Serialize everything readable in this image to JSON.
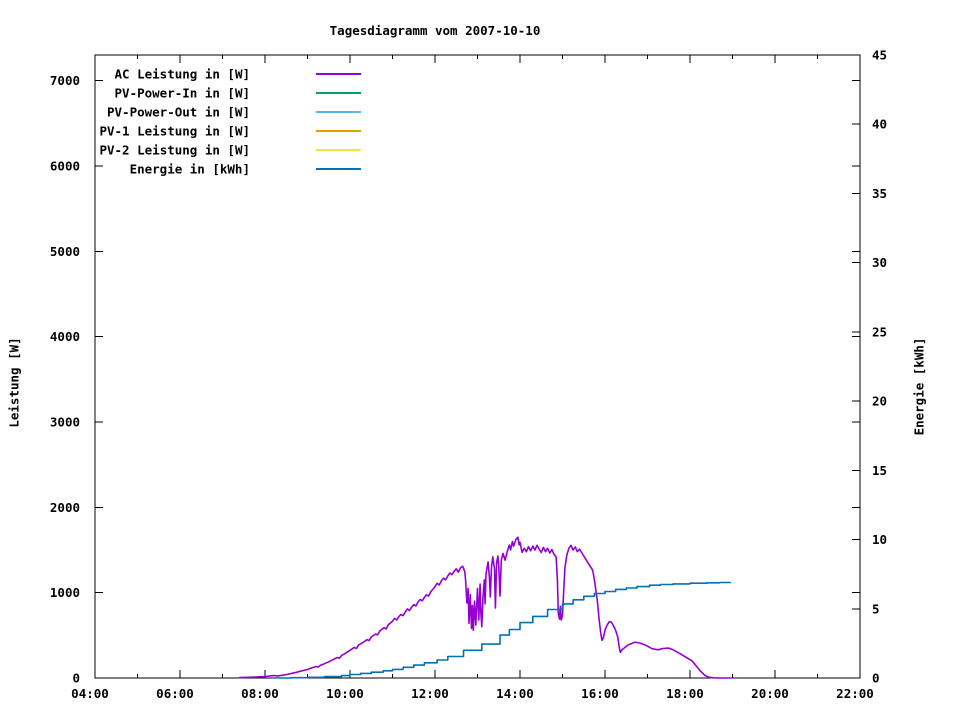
{
  "title": "Tagesdiagramm vom 2007-10-10",
  "axes": {
    "left": {
      "label": "Leistung [W]",
      "ticks": [
        0,
        1000,
        2000,
        3000,
        4000,
        5000,
        6000,
        7000
      ]
    },
    "right": {
      "label": "Energie [kWh]",
      "ticks": [
        0,
        5,
        10,
        15,
        20,
        25,
        30,
        35,
        40,
        45
      ]
    },
    "x": {
      "major": [
        {
          "t": 4,
          "label": "04:00"
        },
        {
          "t": 6,
          "label": "06:00"
        },
        {
          "t": 8,
          "label": "08:00"
        },
        {
          "t": 10,
          "label": "10:00"
        },
        {
          "t": 12,
          "label": "12:00"
        },
        {
          "t": 14,
          "label": "14:00"
        },
        {
          "t": 16,
          "label": "16:00"
        },
        {
          "t": 18,
          "label": "18:00"
        },
        {
          "t": 20,
          "label": "20:00"
        },
        {
          "t": 22,
          "label": "22:00"
        }
      ],
      "minor_hours": [
        5,
        7,
        9,
        11,
        13,
        15,
        17,
        19,
        21
      ]
    }
  },
  "legend": [
    {
      "label": "AC Leistung in [W]",
      "color": "#9400d3"
    },
    {
      "label": "PV-Power-In in [W]",
      "color": "#009e73"
    },
    {
      "label": "PV-Power-Out in [W]",
      "color": "#56b4e9"
    },
    {
      "label": "PV-1 Leistung in [W]",
      "color": "#e69f00"
    },
    {
      "label": "PV-2 Leistung in [W]",
      "color": "#f0e442"
    },
    {
      "label": "Energie in [kWh]",
      "color": "#0072b2"
    }
  ],
  "chart_data": {
    "type": "line",
    "title": "Tagesdiagramm vom 2007-10-10",
    "x_range_hours": [
      4,
      22
    ],
    "y_left_label": "Leistung [W]",
    "y_left_range": [
      0,
      7300
    ],
    "y_right_label": "Energie [kWh]",
    "y_right_range": [
      0,
      45
    ],
    "grid": false,
    "legend_position": "top-left-inside",
    "series": [
      {
        "name": "AC Leistung in [W]",
        "color": "#9400d3",
        "axis": "left",
        "style": "lines",
        "points": [
          [
            7.4,
            5
          ],
          [
            7.6,
            8
          ],
          [
            7.8,
            12
          ],
          [
            8.0,
            18
          ],
          [
            8.1,
            22
          ],
          [
            8.2,
            28
          ],
          [
            8.3,
            25
          ],
          [
            8.4,
            32
          ],
          [
            8.5,
            40
          ],
          [
            8.6,
            50
          ],
          [
            8.7,
            62
          ],
          [
            8.8,
            75
          ],
          [
            8.9,
            88
          ],
          [
            9.0,
            100
          ],
          [
            9.1,
            118
          ],
          [
            9.2,
            135
          ],
          [
            9.25,
            128
          ],
          [
            9.3,
            148
          ],
          [
            9.4,
            168
          ],
          [
            9.5,
            190
          ],
          [
            9.6,
            215
          ],
          [
            9.7,
            240
          ],
          [
            9.75,
            232
          ],
          [
            9.8,
            262
          ],
          [
            9.9,
            292
          ],
          [
            10.0,
            325
          ],
          [
            10.1,
            358
          ],
          [
            10.15,
            345
          ],
          [
            10.2,
            385
          ],
          [
            10.3,
            415
          ],
          [
            10.4,
            450
          ],
          [
            10.45,
            438
          ],
          [
            10.5,
            480
          ],
          [
            10.6,
            515
          ],
          [
            10.65,
            505
          ],
          [
            10.7,
            550
          ],
          [
            10.8,
            590
          ],
          [
            10.85,
            575
          ],
          [
            10.9,
            625
          ],
          [
            11.0,
            665
          ],
          [
            11.05,
            700
          ],
          [
            11.1,
            680
          ],
          [
            11.15,
            720
          ],
          [
            11.2,
            745
          ],
          [
            11.25,
            730
          ],
          [
            11.3,
            775
          ],
          [
            11.35,
            810
          ],
          [
            11.4,
            790
          ],
          [
            11.45,
            830
          ],
          [
            11.5,
            860
          ],
          [
            11.55,
            845
          ],
          [
            11.6,
            890
          ],
          [
            11.65,
            920
          ],
          [
            11.7,
            905
          ],
          [
            11.75,
            945
          ],
          [
            11.8,
            975
          ],
          [
            11.85,
            960
          ],
          [
            11.9,
            1010
          ],
          [
            11.95,
            1040
          ],
          [
            12.0,
            1070
          ],
          [
            12.05,
            1110
          ],
          [
            12.1,
            1090
          ],
          [
            12.15,
            1140
          ],
          [
            12.2,
            1170
          ],
          [
            12.25,
            1150
          ],
          [
            12.3,
            1195
          ],
          [
            12.35,
            1230
          ],
          [
            12.4,
            1210
          ],
          [
            12.45,
            1250
          ],
          [
            12.5,
            1280
          ],
          [
            12.55,
            1240
          ],
          [
            12.6,
            1290
          ],
          [
            12.65,
            1310
          ],
          [
            12.7,
            1250
          ],
          [
            12.72,
            1150
          ],
          [
            12.75,
            880
          ],
          [
            12.78,
            1050
          ],
          [
            12.8,
            640
          ],
          [
            12.83,
            980
          ],
          [
            12.86,
            580
          ],
          [
            12.88,
            850
          ],
          [
            12.9,
            560
          ],
          [
            12.93,
            900
          ],
          [
            12.96,
            620
          ],
          [
            13.0,
            1050
          ],
          [
            13.03,
            680
          ],
          [
            13.06,
            1100
          ],
          [
            13.08,
            760
          ],
          [
            13.1,
            600
          ],
          [
            13.13,
            950
          ],
          [
            13.16,
            1150
          ],
          [
            13.18,
            870
          ],
          [
            13.2,
            1220
          ],
          [
            13.25,
            1360
          ],
          [
            13.28,
            1180
          ],
          [
            13.3,
            950
          ],
          [
            13.33,
            1300
          ],
          [
            13.36,
            1420
          ],
          [
            13.4,
            1280
          ],
          [
            13.42,
            820
          ],
          [
            13.45,
            1350
          ],
          [
            13.48,
            1430
          ],
          [
            13.5,
            1300
          ],
          [
            13.53,
            960
          ],
          [
            13.56,
            1380
          ],
          [
            13.6,
            1460
          ],
          [
            13.65,
            1380
          ],
          [
            13.7,
            1480
          ],
          [
            13.75,
            1560
          ],
          [
            13.78,
            1500
          ],
          [
            13.82,
            1600
          ],
          [
            13.85,
            1545
          ],
          [
            13.9,
            1620
          ],
          [
            13.95,
            1650
          ],
          [
            13.98,
            1560
          ],
          [
            14.0,
            1590
          ],
          [
            14.05,
            1470
          ],
          [
            14.1,
            1520
          ],
          [
            14.15,
            1480
          ],
          [
            14.2,
            1540
          ],
          [
            14.25,
            1490
          ],
          [
            14.3,
            1545
          ],
          [
            14.35,
            1500
          ],
          [
            14.4,
            1555
          ],
          [
            14.45,
            1510
          ],
          [
            14.5,
            1470
          ],
          [
            14.55,
            1530
          ],
          [
            14.6,
            1480
          ],
          [
            14.65,
            1520
          ],
          [
            14.7,
            1465
          ],
          [
            14.75,
            1505
          ],
          [
            14.8,
            1450
          ],
          [
            14.85,
            1420
          ],
          [
            14.88,
            1150
          ],
          [
            14.9,
            760
          ],
          [
            14.93,
            690
          ],
          [
            14.95,
            840
          ],
          [
            14.97,
            680
          ],
          [
            15.0,
            730
          ],
          [
            15.03,
            1050
          ],
          [
            15.06,
            1300
          ],
          [
            15.1,
            1440
          ],
          [
            15.15,
            1520
          ],
          [
            15.2,
            1555
          ],
          [
            15.25,
            1500
          ],
          [
            15.3,
            1535
          ],
          [
            15.35,
            1480
          ],
          [
            15.4,
            1510
          ],
          [
            15.45,
            1470
          ],
          [
            15.5,
            1430
          ],
          [
            15.55,
            1390
          ],
          [
            15.6,
            1350
          ],
          [
            15.65,
            1310
          ],
          [
            15.7,
            1270
          ],
          [
            15.72,
            1240
          ],
          [
            15.75,
            1150
          ],
          [
            15.78,
            1050
          ],
          [
            15.82,
            900
          ],
          [
            15.86,
            700
          ],
          [
            15.9,
            520
          ],
          [
            15.93,
            440
          ],
          [
            15.96,
            470
          ],
          [
            16.0,
            560
          ],
          [
            16.05,
            620
          ],
          [
            16.1,
            660
          ],
          [
            16.15,
            655
          ],
          [
            16.2,
            610
          ],
          [
            16.25,
            560
          ],
          [
            16.3,
            480
          ],
          [
            16.33,
            380
          ],
          [
            16.36,
            300
          ],
          [
            16.4,
            330
          ],
          [
            16.55,
            390
          ],
          [
            16.7,
            420
          ],
          [
            16.82,
            410
          ],
          [
            16.95,
            385
          ],
          [
            17.1,
            345
          ],
          [
            17.25,
            330
          ],
          [
            17.35,
            345
          ],
          [
            17.5,
            350
          ],
          [
            17.6,
            330
          ],
          [
            17.75,
            290
          ],
          [
            17.9,
            245
          ],
          [
            18.05,
            200
          ],
          [
            18.15,
            140
          ],
          [
            18.25,
            80
          ],
          [
            18.35,
            30
          ],
          [
            18.45,
            8
          ],
          [
            18.55,
            2
          ],
          [
            18.7,
            0
          ],
          [
            18.95,
            0
          ]
        ]
      },
      {
        "name": "PV-Power-In in [W]",
        "color": "#009e73",
        "axis": "left",
        "style": "lines",
        "points": []
      },
      {
        "name": "PV-Power-Out in [W]",
        "color": "#56b4e9",
        "axis": "left",
        "style": "lines",
        "points": []
      },
      {
        "name": "PV-1 Leistung in [W]",
        "color": "#e69f00",
        "axis": "left",
        "style": "lines",
        "points": []
      },
      {
        "name": "PV-2 Leistung in [W]",
        "color": "#f0e442",
        "axis": "left",
        "style": "lines",
        "points": []
      },
      {
        "name": "Energie in [kWh]",
        "color": "#0072b2",
        "axis": "right",
        "style": "steps",
        "points": [
          [
            8.2,
            0
          ],
          [
            8.6,
            0.02
          ],
          [
            9.0,
            0.05
          ],
          [
            9.4,
            0.1
          ],
          [
            9.8,
            0.17
          ],
          [
            10.0,
            0.25
          ],
          [
            10.25,
            0.33
          ],
          [
            10.5,
            0.42
          ],
          [
            10.78,
            0.52
          ],
          [
            11.0,
            0.62
          ],
          [
            11.25,
            0.77
          ],
          [
            11.5,
            0.93
          ],
          [
            11.75,
            1.1
          ],
          [
            12.05,
            1.3
          ],
          [
            12.3,
            1.55
          ],
          [
            12.67,
            2.0
          ],
          [
            13.1,
            2.45
          ],
          [
            13.53,
            3.1
          ],
          [
            13.75,
            3.5
          ],
          [
            14.0,
            4.0
          ],
          [
            14.3,
            4.45
          ],
          [
            14.65,
            4.95
          ],
          [
            15.0,
            5.35
          ],
          [
            15.25,
            5.65
          ],
          [
            15.5,
            5.9
          ],
          [
            15.75,
            6.1
          ],
          [
            16.0,
            6.25
          ],
          [
            16.25,
            6.4
          ],
          [
            16.5,
            6.5
          ],
          [
            16.75,
            6.6
          ],
          [
            17.05,
            6.7
          ],
          [
            17.3,
            6.75
          ],
          [
            17.6,
            6.8
          ],
          [
            18.0,
            6.85
          ],
          [
            18.4,
            6.88
          ],
          [
            18.7,
            6.9
          ],
          [
            18.95,
            6.9
          ]
        ]
      }
    ]
  }
}
